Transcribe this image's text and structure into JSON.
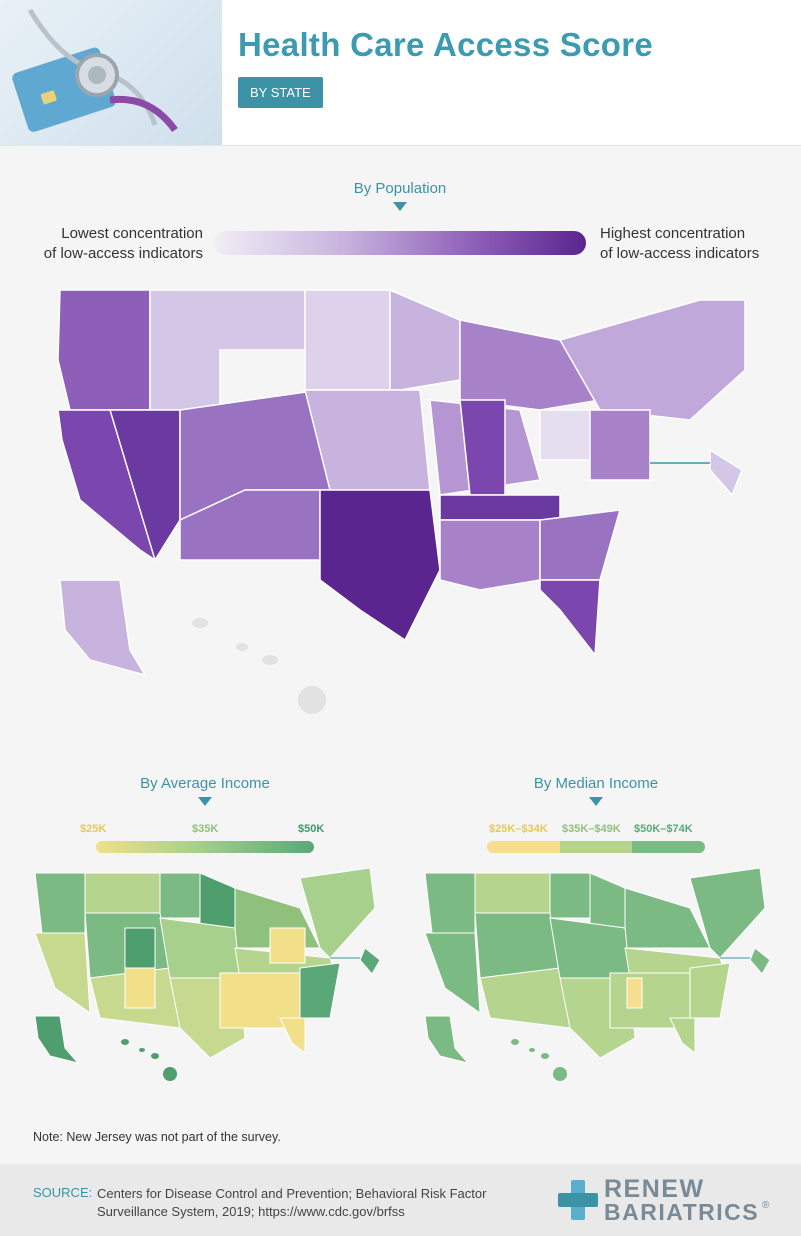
{
  "header": {
    "title": "Health Care Access Score",
    "badge": "BY STATE"
  },
  "population_section": {
    "label": "By Population",
    "legend_low": "Lowest concentration\nof low-access indicators",
    "legend_high": "Highest concentration\nof low-access indicators",
    "colors": [
      "#f1eef6",
      "#c7b3dd",
      "#8e5fb8",
      "#5b2590"
    ]
  },
  "avg_income_section": {
    "label": "By Average Income",
    "ticks": [
      "$25K",
      "$35K",
      "$50K"
    ],
    "colors": [
      "#f2df8a",
      "#a8d08d",
      "#5aa878"
    ]
  },
  "median_income_section": {
    "label": "By Median Income",
    "bins": [
      "$25K–$34K",
      "$35K–$49K",
      "$50K–$74K"
    ],
    "colors": [
      "#f6de8e",
      "#b5d58f",
      "#7cba84"
    ]
  },
  "note": "Note: New Jersey was not part of the survey.",
  "footer": {
    "source_label": "SOURCE:",
    "source_text": "Centers for Disease Control and Prevention; Behavioral Risk Factor Surveillance System, 2019; https://www.cdc.gov/brfss",
    "logo_line1": "RENEW",
    "logo_line2": "BARIATRICS",
    "logo_mark": "®"
  }
}
